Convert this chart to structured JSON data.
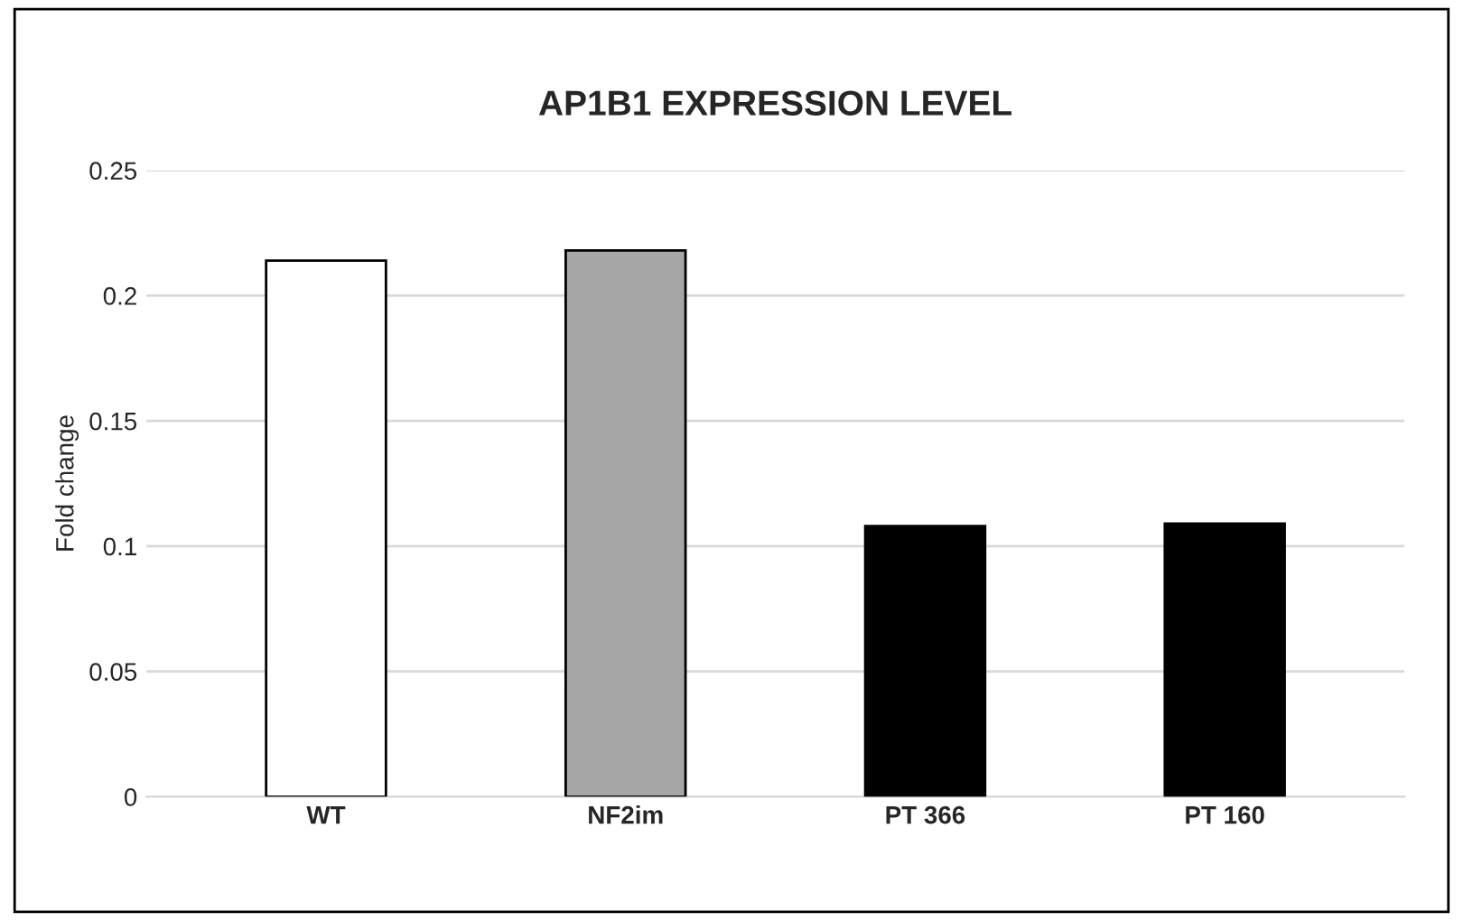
{
  "chart_data": {
    "type": "bar",
    "title": "AP1B1 EXPRESSION LEVEL",
    "ylabel": "Fold change",
    "categories": [
      "WT",
      "NF2im",
      "PT 366",
      "PT 160"
    ],
    "values": [
      0.214,
      0.218,
      0.108,
      0.109
    ],
    "colors": [
      "#ffffff",
      "#a6a6a6",
      "#000000",
      "#000000"
    ],
    "ylim": [
      0,
      0.25
    ],
    "yticks": [
      0,
      0.05,
      0.1,
      0.15,
      0.2,
      0.25
    ],
    "grid": "y"
  }
}
